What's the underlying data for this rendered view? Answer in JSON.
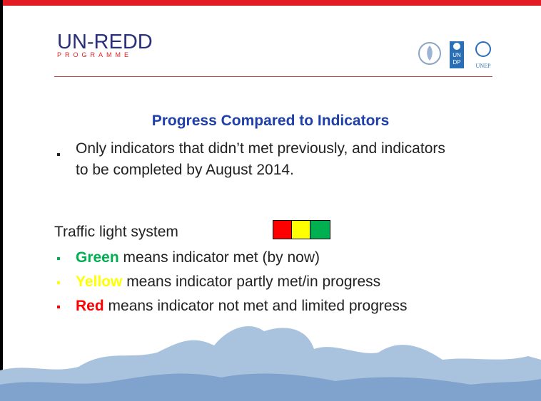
{
  "header": {
    "logo_name": "UN-REDD",
    "logo_subtitle": "PROGRAMME",
    "undp_top": "UN",
    "undp_bottom": "DP",
    "unep": "UNEP"
  },
  "title": "Progress Compared to Indicators",
  "bullets": [
    "Only indicators that didn’t met previously, and indicators to be completed by August 2014."
  ],
  "traffic_light": {
    "label": "Traffic light system",
    "colors": [
      "#ff0000",
      "#ffff00",
      "#00b050"
    ]
  },
  "legend": [
    {
      "word": "Green",
      "text": " means indicator met (by now)",
      "color": "#00b050"
    },
    {
      "word": "Yellow",
      "text": " means indicator partly met/in progress",
      "color": "#ffff00"
    },
    {
      "word": "Red",
      "text": " means indicator not met and limited progress",
      "color": "#ff0000"
    }
  ]
}
